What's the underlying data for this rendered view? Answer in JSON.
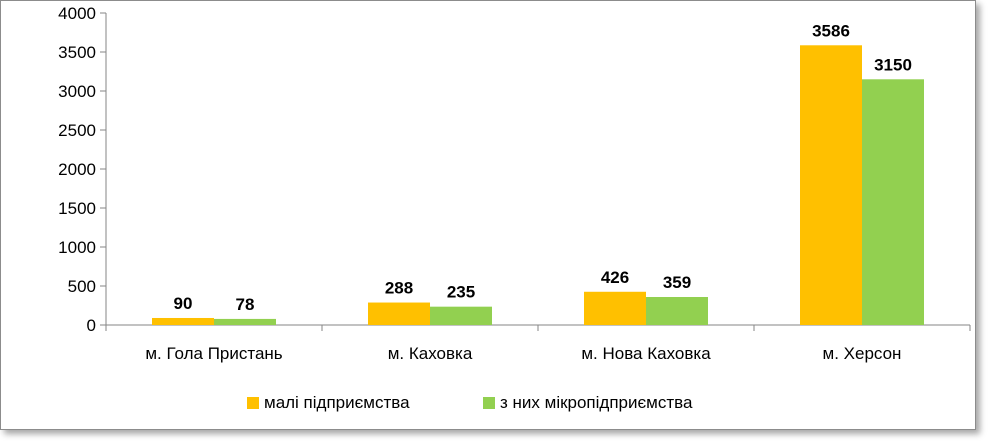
{
  "chart_data": {
    "type": "bar",
    "categories": [
      "м. Гола Пристань",
      "м. Каховка",
      "м. Нова Каховка",
      "м. Херсон"
    ],
    "series": [
      {
        "name": "малі підприємства",
        "values": [
          90,
          288,
          426,
          3586
        ],
        "color": "#FFC000"
      },
      {
        "name": "з них мікропідприємства",
        "values": [
          78,
          235,
          359,
          3150
        ],
        "color": "#92D050"
      }
    ],
    "ylim": [
      0,
      4000
    ],
    "yticks": [
      0,
      500,
      1000,
      1500,
      2000,
      2500,
      3000,
      3500,
      4000
    ],
    "grid": false,
    "legend": "bottom"
  }
}
